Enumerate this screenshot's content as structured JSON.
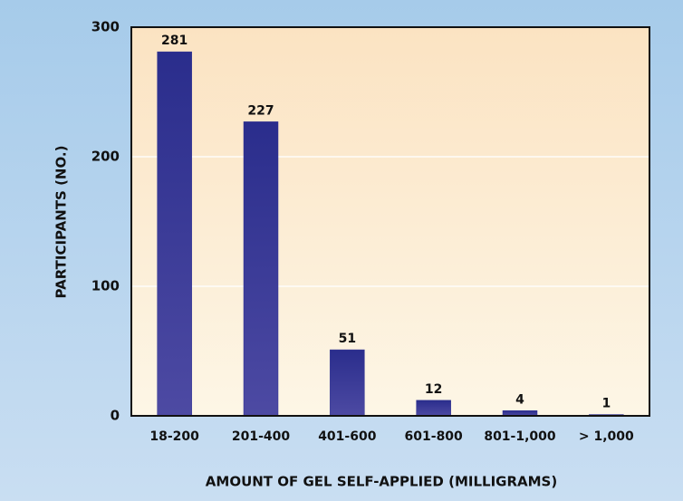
{
  "chart_data": {
    "type": "bar",
    "x_label": "AMOUNT OF GEL SELF-APPLIED (MILLIGRAMS)",
    "y_label": "PARTICIPANTS (NO.)",
    "categories": [
      "18-200",
      "201-400",
      "401-600",
      "601-800",
      "801-1,000",
      "> 1,000"
    ],
    "values": [
      281,
      227,
      51,
      12,
      4,
      1
    ],
    "color": "#2e3191",
    "ylim": [
      0,
      300
    ],
    "yticks": [
      0,
      100,
      200,
      300
    ],
    "grid": true
  }
}
